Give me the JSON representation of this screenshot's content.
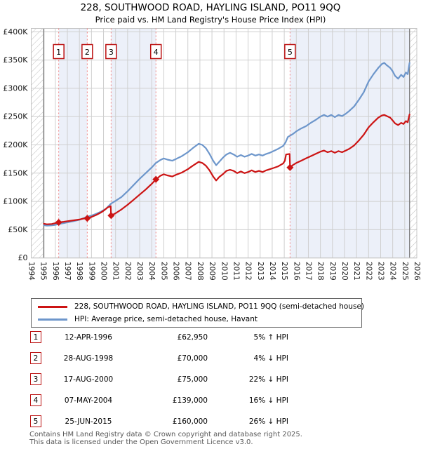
{
  "title": {
    "line1": "228, SOUTHWOOD ROAD, HAYLING ISLAND, PO11 9QQ",
    "line2": "Price paid vs. HM Land Registry's House Price Index (HPI)"
  },
  "colors": {
    "property_line": "#cc1414",
    "hpi_line": "#6d96cb",
    "marker_dash": "#f08080",
    "band": "#ecf0f9",
    "grid": "#cfcfcf",
    "hatch": "#b8b8b8",
    "border": "#c4c4c4",
    "data_edge": "#757575",
    "badge_border": "#bb1111"
  },
  "chart_data": {
    "type": "line",
    "x_range": [
      1994,
      2026
    ],
    "y_range": [
      0,
      400000
    ],
    "x_ticks": [
      1994,
      1995,
      1996,
      1997,
      1998,
      1999,
      2000,
      2001,
      2002,
      2003,
      2004,
      2005,
      2006,
      2007,
      2008,
      2009,
      2010,
      2011,
      2012,
      2013,
      2014,
      2015,
      2016,
      2017,
      2018,
      2019,
      2020,
      2021,
      2022,
      2023,
      2024,
      2025,
      2026
    ],
    "y_ticks": [
      {
        "value": 0,
        "label": "£0"
      },
      {
        "value": 50000,
        "label": "£50K"
      },
      {
        "value": 100000,
        "label": "£100K"
      },
      {
        "value": 150000,
        "label": "£150K"
      },
      {
        "value": 200000,
        "label": "£200K"
      },
      {
        "value": 250000,
        "label": "£250K"
      },
      {
        "value": 300000,
        "label": "£300K"
      },
      {
        "value": 350000,
        "label": "£350K"
      },
      {
        "value": 400000,
        "label": "£400K"
      }
    ],
    "grid": true,
    "hatch_regions": [
      [
        1994,
        1995.05
      ],
      [
        2025.4,
        2026
      ]
    ],
    "shaded_regions": [
      [
        1996.28,
        1998.65
      ],
      [
        2000.63,
        2004.35
      ],
      [
        2015.48,
        2025.4
      ]
    ],
    "data_edges": [
      1995.05,
      2025.4
    ],
    "markers": [
      {
        "n": "1",
        "x": 1996.28,
        "price": 62950
      },
      {
        "n": "2",
        "x": 1998.65,
        "price": 70000
      },
      {
        "n": "3",
        "x": 2000.63,
        "price": 75000
      },
      {
        "n": "4",
        "x": 2004.35,
        "price": 139000
      },
      {
        "n": "5",
        "x": 2015.48,
        "price": 160000
      }
    ],
    "series": [
      {
        "name": "HPI: Average price, semi-detached house, Havant",
        "color": "#6d96cb",
        "points": [
          [
            1995.05,
            58000
          ],
          [
            1995.3,
            57200
          ],
          [
            1995.7,
            57600
          ],
          [
            1996,
            58500
          ],
          [
            1996.28,
            60000
          ],
          [
            1996.7,
            61500
          ],
          [
            1997,
            63000
          ],
          [
            1997.5,
            65000
          ],
          [
            1998,
            67500
          ],
          [
            1998.3,
            70000
          ],
          [
            1998.65,
            72900
          ],
          [
            1999,
            75000
          ],
          [
            1999.4,
            78000
          ],
          [
            1999.8,
            82000
          ],
          [
            2000.2,
            87000
          ],
          [
            2000.63,
            96200
          ],
          [
            2001,
            101000
          ],
          [
            2001.5,
            108000
          ],
          [
            2002,
            118000
          ],
          [
            2002.5,
            129000
          ],
          [
            2003,
            140000
          ],
          [
            2003.5,
            150000
          ],
          [
            2004,
            160000
          ],
          [
            2004.35,
            168000
          ],
          [
            2004.7,
            173000
          ],
          [
            2005,
            176000
          ],
          [
            2005.3,
            174000
          ],
          [
            2005.7,
            172000
          ],
          [
            2006,
            175000
          ],
          [
            2006.5,
            180000
          ],
          [
            2007,
            187000
          ],
          [
            2007.4,
            194000
          ],
          [
            2007.9,
            202000
          ],
          [
            2008.2,
            200000
          ],
          [
            2008.5,
            194000
          ],
          [
            2008.8,
            184000
          ],
          [
            2009.1,
            172000
          ],
          [
            2009.35,
            164000
          ],
          [
            2009.6,
            170000
          ],
          [
            2009.9,
            177000
          ],
          [
            2010.2,
            183000
          ],
          [
            2010.5,
            186000
          ],
          [
            2010.8,
            183000
          ],
          [
            2011.1,
            179000
          ],
          [
            2011.4,
            182000
          ],
          [
            2011.7,
            179000
          ],
          [
            2012,
            181000
          ],
          [
            2012.3,
            184000
          ],
          [
            2012.6,
            181000
          ],
          [
            2012.9,
            183000
          ],
          [
            2013.2,
            181000
          ],
          [
            2013.5,
            184000
          ],
          [
            2013.8,
            186000
          ],
          [
            2014.1,
            189000
          ],
          [
            2014.5,
            193000
          ],
          [
            2014.9,
            198000
          ],
          [
            2015.1,
            204000
          ],
          [
            2015.3,
            214000
          ],
          [
            2015.48,
            216200
          ],
          [
            2015.7,
            219000
          ],
          [
            2016,
            224000
          ],
          [
            2016.4,
            229000
          ],
          [
            2016.8,
            233000
          ],
          [
            2017.2,
            239000
          ],
          [
            2017.6,
            244000
          ],
          [
            2018,
            250000
          ],
          [
            2018.3,
            253000
          ],
          [
            2018.6,
            250000
          ],
          [
            2018.9,
            253000
          ],
          [
            2019.2,
            249000
          ],
          [
            2019.5,
            253000
          ],
          [
            2019.8,
            251000
          ],
          [
            2020.1,
            255000
          ],
          [
            2020.4,
            260000
          ],
          [
            2020.8,
            268000
          ],
          [
            2021.2,
            280000
          ],
          [
            2021.6,
            293000
          ],
          [
            2022,
            312000
          ],
          [
            2022.4,
            325000
          ],
          [
            2022.8,
            336000
          ],
          [
            2023.1,
            343000
          ],
          [
            2023.3,
            345000
          ],
          [
            2023.5,
            341000
          ],
          [
            2023.8,
            336000
          ],
          [
            2024,
            330000
          ],
          [
            2024.2,
            322000
          ],
          [
            2024.45,
            317000
          ],
          [
            2024.7,
            324000
          ],
          [
            2024.9,
            320000
          ],
          [
            2025.1,
            328000
          ],
          [
            2025.25,
            325000
          ],
          [
            2025.4,
            345000
          ]
        ]
      },
      {
        "name": "228, SOUTHWOOD ROAD, HAYLING ISLAND, PO11 9QQ (semi-detached house)",
        "color": "#cc1414",
        "points": [
          [
            1995.05,
            60500
          ],
          [
            1995.3,
            59500
          ],
          [
            1995.7,
            60000
          ],
          [
            1996,
            61500
          ],
          [
            1996.28,
            62950
          ],
          [
            1996.7,
            64000
          ],
          [
            1997,
            65000
          ],
          [
            1997.5,
            66500
          ],
          [
            1998,
            68000
          ],
          [
            1998.3,
            69500
          ],
          [
            1998.65,
            70000
          ],
          [
            1999,
            72500
          ],
          [
            1999.4,
            76000
          ],
          [
            1999.8,
            80500
          ],
          [
            2000.1,
            85000
          ],
          [
            2000.35,
            89500
          ],
          [
            2000.6,
            91500
          ],
          [
            2000.63,
            75000
          ],
          [
            2001,
            79000
          ],
          [
            2001.5,
            86000
          ],
          [
            2002,
            94000
          ],
          [
            2002.5,
            103000
          ],
          [
            2003,
            112000
          ],
          [
            2003.5,
            121000
          ],
          [
            2004,
            131000
          ],
          [
            2004.35,
            139000
          ],
          [
            2004.7,
            145000
          ],
          [
            2005,
            148000
          ],
          [
            2005.3,
            146000
          ],
          [
            2005.7,
            144000
          ],
          [
            2006,
            147000
          ],
          [
            2006.5,
            151000
          ],
          [
            2007,
            157000
          ],
          [
            2007.4,
            163000
          ],
          [
            2007.9,
            170000
          ],
          [
            2008.2,
            168000
          ],
          [
            2008.5,
            163000
          ],
          [
            2008.8,
            155000
          ],
          [
            2009.1,
            144000
          ],
          [
            2009.35,
            137000
          ],
          [
            2009.6,
            143000
          ],
          [
            2009.9,
            148000
          ],
          [
            2010.2,
            154000
          ],
          [
            2010.5,
            156000
          ],
          [
            2010.8,
            154000
          ],
          [
            2011.1,
            150000
          ],
          [
            2011.4,
            153000
          ],
          [
            2011.7,
            150000
          ],
          [
            2012,
            152000
          ],
          [
            2012.3,
            155000
          ],
          [
            2012.6,
            152000
          ],
          [
            2012.9,
            154000
          ],
          [
            2013.2,
            152000
          ],
          [
            2013.5,
            155000
          ],
          [
            2013.8,
            157000
          ],
          [
            2014.1,
            159000
          ],
          [
            2014.5,
            162000
          ],
          [
            2014.9,
            167000
          ],
          [
            2015.05,
            172000
          ],
          [
            2015.15,
            183000
          ],
          [
            2015.45,
            184000
          ],
          [
            2015.48,
            160000
          ],
          [
            2015.7,
            164000
          ],
          [
            2016,
            168000
          ],
          [
            2016.4,
            172000
          ],
          [
            2016.8,
            176000
          ],
          [
            2017.2,
            180000
          ],
          [
            2017.6,
            184000
          ],
          [
            2018,
            188000
          ],
          [
            2018.3,
            190000
          ],
          [
            2018.6,
            187000
          ],
          [
            2018.9,
            189000
          ],
          [
            2019.2,
            186000
          ],
          [
            2019.5,
            189000
          ],
          [
            2019.8,
            187000
          ],
          [
            2020.1,
            190000
          ],
          [
            2020.4,
            193000
          ],
          [
            2020.8,
            199000
          ],
          [
            2021.2,
            208000
          ],
          [
            2021.6,
            218000
          ],
          [
            2022,
            231000
          ],
          [
            2022.4,
            240000
          ],
          [
            2022.8,
            248000
          ],
          [
            2023.1,
            252000
          ],
          [
            2023.3,
            253000
          ],
          [
            2023.5,
            251000
          ],
          [
            2023.8,
            248000
          ],
          [
            2024,
            243000
          ],
          [
            2024.2,
            238000
          ],
          [
            2024.45,
            235000
          ],
          [
            2024.7,
            239000
          ],
          [
            2024.9,
            237000
          ],
          [
            2025.1,
            242000
          ],
          [
            2025.25,
            240000
          ],
          [
            2025.4,
            254000
          ]
        ]
      }
    ],
    "title": "228, SOUTHWOOD ROAD, HAYLING ISLAND, PO11 9QQ — Price paid vs. HPI",
    "xlabel": "",
    "ylabel": ""
  },
  "legend": {
    "items": [
      {
        "label": "228, SOUTHWOOD ROAD, HAYLING ISLAND, PO11 9QQ (semi-detached house)",
        "color": "#cc1414"
      },
      {
        "label": "HPI: Average price, semi-detached house, Havant",
        "color": "#6d96cb"
      }
    ]
  },
  "table": {
    "rows": [
      {
        "num": "1",
        "date": "12-APR-1996",
        "price": "£62,950",
        "hpi": "5% ↑ HPI"
      },
      {
        "num": "2",
        "date": "28-AUG-1998",
        "price": "£70,000",
        "hpi": "4% ↓ HPI"
      },
      {
        "num": "3",
        "date": "17-AUG-2000",
        "price": "£75,000",
        "hpi": "22% ↓ HPI"
      },
      {
        "num": "4",
        "date": "07-MAY-2004",
        "price": "£139,000",
        "hpi": "16% ↓ HPI"
      },
      {
        "num": "5",
        "date": "25-JUN-2015",
        "price": "£160,000",
        "hpi": "26% ↓ HPI"
      }
    ]
  },
  "footer": {
    "line1": "Contains HM Land Registry data © Crown copyright and database right 2025.",
    "line2": "This data is licensed under the Open Government Licence v3.0."
  }
}
